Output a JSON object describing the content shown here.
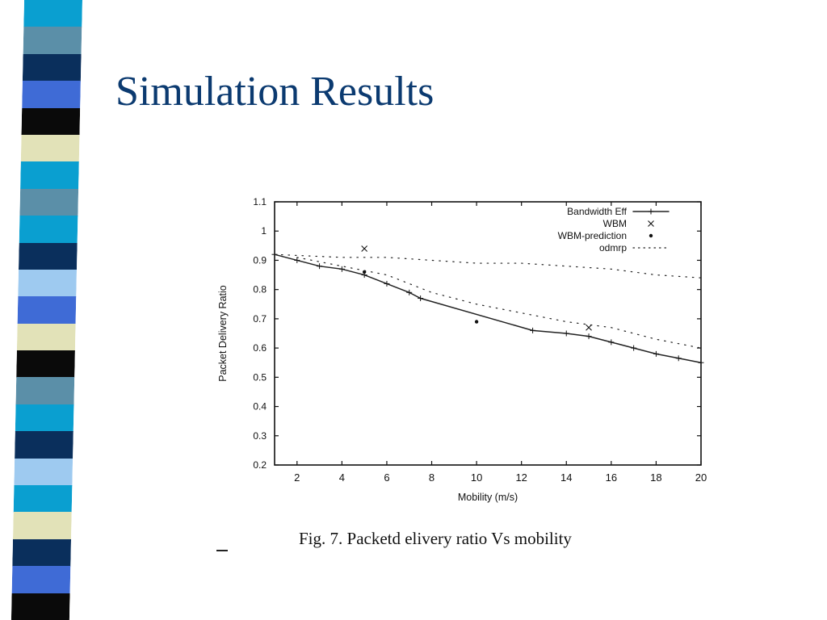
{
  "slide": {
    "title": "Simulation Results",
    "caption": "Fig. 7.   Packetd elivery ratio Vs mobility",
    "stripe_colors": [
      "#0a9fd0",
      "#5b8fa8",
      "#0a2f5c",
      "#3f6bd6",
      "#0a0a0a",
      "#e2e2b8",
      "#0a9fd0",
      "#5b8fa8",
      "#0a9fd0",
      "#0a2f5c",
      "#9ecaf0",
      "#3f6bd6",
      "#e2e2b8",
      "#0a0a0a",
      "#5b8fa8",
      "#0a9fd0",
      "#0a2f5c",
      "#9ecaf0",
      "#0a9fd0",
      "#e2e2b8",
      "#0a2f5c",
      "#3f6bd6",
      "#0a0a0a"
    ]
  },
  "chart_data": {
    "type": "line",
    "title": "",
    "xlabel": "Mobility (m/s)",
    "ylabel": "Packet Delivery Ratio",
    "xlim": [
      1,
      20
    ],
    "ylim": [
      0.2,
      1.1
    ],
    "xticks": [
      2,
      4,
      6,
      8,
      10,
      12,
      14,
      16,
      18,
      20
    ],
    "yticks": [
      0.2,
      0.3,
      0.4,
      0.5,
      0.6,
      0.7,
      0.8,
      0.9,
      1,
      1.1
    ],
    "ytick_labels": [
      "0.2",
      "0.3",
      "0.4",
      "0.5",
      "0.6",
      "0.7",
      "0.8",
      "0.9",
      "1",
      "1.1"
    ],
    "grid": false,
    "legend_position": "top-right",
    "series": [
      {
        "name": "Bandwidth Eff",
        "style": "solid",
        "marker": "+",
        "x": [
          1,
          2,
          3,
          4,
          5,
          6,
          7,
          7.5,
          12.5,
          14,
          15,
          16,
          17,
          18,
          19,
          20
        ],
        "y": [
          0.92,
          0.9,
          0.88,
          0.87,
          0.85,
          0.82,
          0.79,
          0.77,
          0.66,
          0.65,
          0.64,
          0.62,
          0.6,
          0.58,
          0.565,
          0.55
        ]
      },
      {
        "name": "WBM",
        "style": "points",
        "marker": "x",
        "x": [
          5,
          15
        ],
        "y": [
          0.94,
          0.67
        ]
      },
      {
        "name": "WBM-prediction",
        "style": "points",
        "marker": "*",
        "x": [
          5,
          10
        ],
        "y": [
          0.86,
          0.69
        ]
      },
      {
        "name": "odmrp",
        "style": "dotted",
        "marker": "dot",
        "x": [
          1,
          4,
          6,
          8,
          10,
          12,
          14,
          16,
          18,
          20
        ],
        "y": [
          0.92,
          0.91,
          0.91,
          0.9,
          0.89,
          0.89,
          0.88,
          0.87,
          0.85,
          0.84
        ]
      },
      {
        "name": "",
        "style": "dotted",
        "marker": "dot",
        "x": [
          2,
          4,
          6,
          8,
          10,
          12,
          14,
          16,
          18,
          20
        ],
        "y": [
          0.91,
          0.88,
          0.85,
          0.79,
          0.75,
          0.72,
          0.69,
          0.67,
          0.63,
          0.6
        ]
      }
    ]
  }
}
